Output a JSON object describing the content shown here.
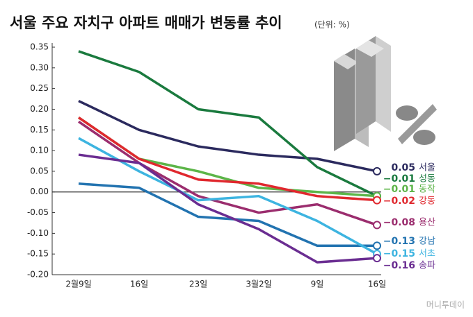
{
  "chart_data": {
    "type": "line",
    "title": "서울 주요 자치구 아파트 매매가 변동률 추이",
    "subtitle": "(단위: %)",
    "source": "머니투데이",
    "categories": [
      "2월9일",
      "16일",
      "23일",
      "3월2일",
      "9일",
      "16일"
    ],
    "ylim": [
      -0.2,
      0.35
    ],
    "yticks": [
      {
        "value": 0.35,
        "label": "0.35"
      },
      {
        "value": 0.3,
        "label": "0.30"
      },
      {
        "value": 0.25,
        "label": "0.25"
      },
      {
        "value": 0.2,
        "label": "0.20"
      },
      {
        "value": 0.15,
        "label": "0.15"
      },
      {
        "value": 0.1,
        "label": "0.10"
      },
      {
        "value": 0.05,
        "label": "0.05"
      },
      {
        "value": 0,
        "label": "0.00"
      },
      {
        "value": -0.05,
        "label": "-0.05"
      },
      {
        "value": -0.1,
        "label": "-0.10"
      },
      {
        "value": -0.15,
        "label": "-0.15"
      },
      {
        "value": -0.2,
        "label": "-0.20"
      }
    ],
    "series": [
      {
        "name": "서울",
        "color": "#2b2a5e",
        "values": [
          0.22,
          0.15,
          0.11,
          0.09,
          0.08,
          0.05
        ],
        "value_labels": [
          null,
          null,
          null,
          null,
          null,
          "0.05"
        ]
      },
      {
        "name": "성동",
        "color": "#1a7a3e",
        "values": [
          0.34,
          0.29,
          0.2,
          0.18,
          0.06,
          -0.01
        ],
        "value_labels": [
          null,
          null,
          null,
          null,
          null,
          "−0.01"
        ]
      },
      {
        "name": "동작",
        "color": "#5cb548",
        "values": [
          0.18,
          0.08,
          0.05,
          0.01,
          0.0,
          -0.01
        ],
        "value_labels": [
          null,
          null,
          null,
          null,
          null,
          "−0.01"
        ]
      },
      {
        "name": "강동",
        "color": "#e0282e",
        "values": [
          0.18,
          0.08,
          0.03,
          0.02,
          -0.01,
          -0.02
        ],
        "value_labels": [
          null,
          null,
          null,
          null,
          null,
          "−0.02"
        ]
      },
      {
        "name": "용산",
        "color": "#9b2d6e",
        "values": [
          0.17,
          0.07,
          -0.01,
          -0.05,
          -0.03,
          -0.08
        ],
        "value_labels": [
          null,
          null,
          null,
          null,
          null,
          "−0.08"
        ]
      },
      {
        "name": "강남",
        "color": "#2273b0",
        "values": [
          0.02,
          0.01,
          -0.06,
          -0.07,
          -0.13,
          -0.13
        ],
        "value_labels": [
          null,
          null,
          null,
          null,
          null,
          "−0.13"
        ]
      },
      {
        "name": "서초",
        "color": "#3db4e0",
        "values": [
          0.13,
          0.05,
          -0.02,
          -0.01,
          -0.07,
          -0.15
        ],
        "value_labels": [
          null,
          null,
          null,
          null,
          null,
          "−0.15"
        ]
      },
      {
        "name": "송파",
        "color": "#6a2d91",
        "values": [
          0.09,
          0.07,
          -0.03,
          -0.09,
          -0.17,
          -0.16
        ],
        "value_labels": [
          null,
          null,
          null,
          null,
          null,
          "−0.16"
        ]
      }
    ]
  }
}
